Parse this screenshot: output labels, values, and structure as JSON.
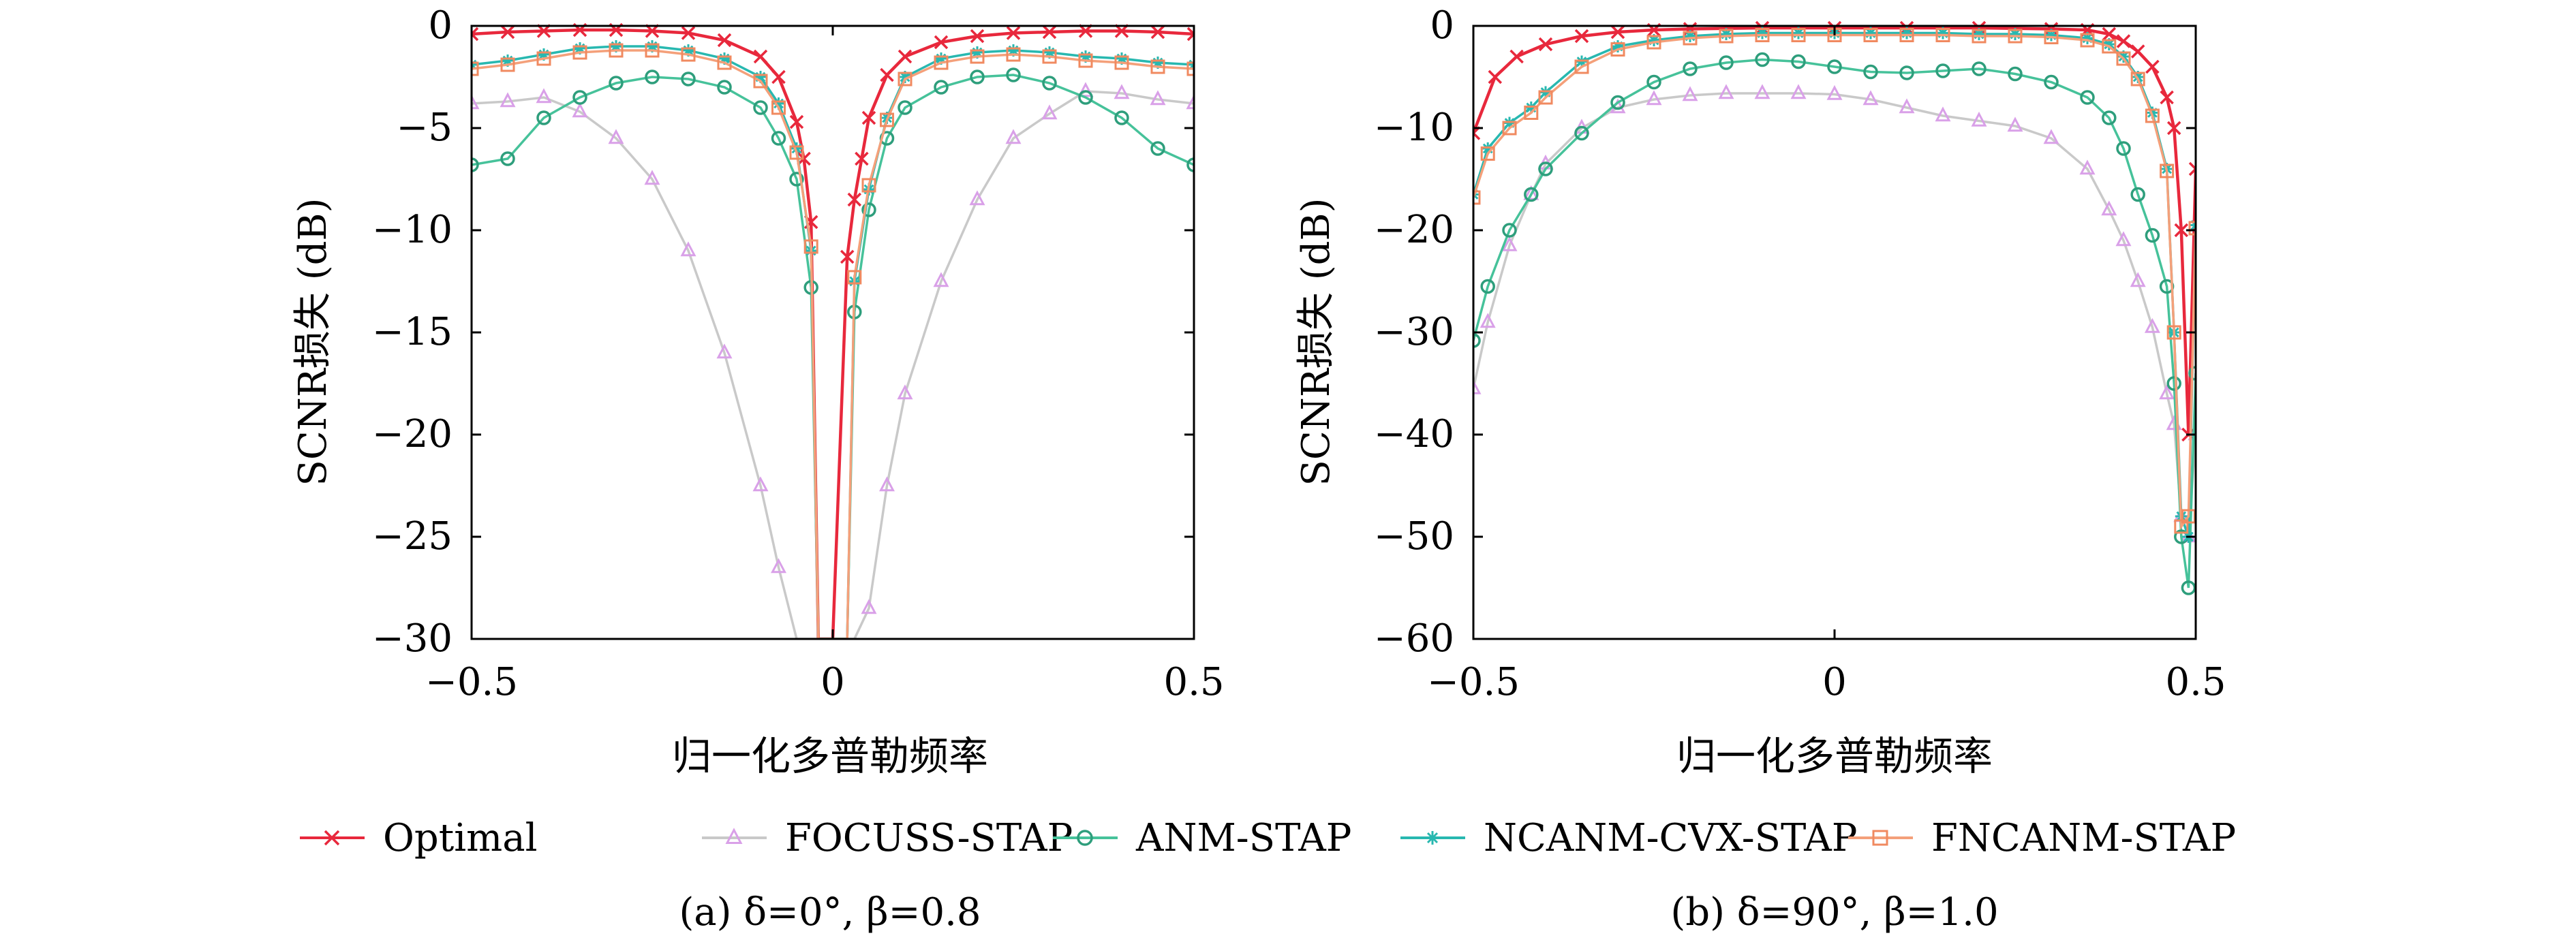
{
  "chart_data": [
    {
      "type": "line",
      "caption": "(a) δ=0°, β=0.8",
      "xlabel": "归一化多普勒频率",
      "ylabel": "SCNR损失 (dB)",
      "xlim": [
        -0.5,
        0.5
      ],
      "ylim": [
        -30,
        0
      ],
      "xticks": [
        -0.5,
        0,
        0.5
      ],
      "xtick_labels": [
        "−0.5",
        "0",
        "0.5"
      ],
      "yticks": [
        0,
        -5,
        -10,
        -15,
        -20,
        -25,
        -30
      ],
      "ytick_labels": [
        "0",
        "−5",
        "−10",
        "−15",
        "−20",
        "−25",
        "−30"
      ],
      "grid": false,
      "series": [
        {
          "name": "Optimal",
          "x": [
            -0.5,
            -0.45,
            -0.4,
            -0.35,
            -0.3,
            -0.25,
            -0.2,
            -0.15,
            -0.1,
            -0.075,
            -0.05,
            -0.04,
            -0.03,
            -0.02,
            0,
            0.02,
            0.03,
            0.04,
            0.05,
            0.075,
            0.1,
            0.15,
            0.2,
            0.25,
            0.3,
            0.35,
            0.4,
            0.45,
            0.5
          ],
          "y": [
            -0.4,
            -0.3,
            -0.25,
            -0.2,
            -0.2,
            -0.25,
            -0.35,
            -0.7,
            -1.5,
            -2.5,
            -4.7,
            -6.5,
            -9.6,
            -30,
            -30,
            -11.3,
            -8.5,
            -6.5,
            -4.5,
            -2.4,
            -1.5,
            -0.8,
            -0.5,
            -0.35,
            -0.3,
            -0.25,
            -0.25,
            -0.3,
            -0.4
          ]
        },
        {
          "name": "FOCUSS-STAP",
          "x": [
            -0.5,
            -0.45,
            -0.4,
            -0.35,
            -0.3,
            -0.25,
            -0.2,
            -0.15,
            -0.1,
            -0.075,
            -0.05,
            -0.03,
            -0.02,
            0.02,
            0.03,
            0.05,
            0.075,
            0.1,
            0.15,
            0.2,
            0.25,
            0.3,
            0.35,
            0.4,
            0.45,
            0.5
          ],
          "y": [
            -3.8,
            -3.7,
            -3.5,
            -4.2,
            -5.5,
            -7.5,
            -11,
            -16,
            -22.5,
            -26.5,
            -30,
            -30,
            -30,
            -30,
            -30,
            -28.5,
            -22.5,
            -18,
            -12.5,
            -8.5,
            -5.5,
            -4.3,
            -3.2,
            -3.3,
            -3.6,
            -3.8
          ]
        },
        {
          "name": "ANM-STAP",
          "x": [
            -0.5,
            -0.45,
            -0.4,
            -0.35,
            -0.3,
            -0.25,
            -0.2,
            -0.15,
            -0.1,
            -0.075,
            -0.05,
            -0.03,
            -0.02,
            0.02,
            0.03,
            0.05,
            0.075,
            0.1,
            0.15,
            0.2,
            0.25,
            0.3,
            0.35,
            0.4,
            0.45,
            0.5
          ],
          "y": [
            -6.8,
            -6.5,
            -4.5,
            -3.5,
            -2.8,
            -2.5,
            -2.6,
            -3.0,
            -4.0,
            -5.5,
            -7.5,
            -12.8,
            -30,
            -30,
            -14.0,
            -9.0,
            -5.5,
            -4.0,
            -3.0,
            -2.5,
            -2.4,
            -2.8,
            -3.5,
            -4.5,
            -6.0,
            -6.8
          ]
        },
        {
          "name": "NCANM-CVX-STAP",
          "x": [
            -0.5,
            -0.45,
            -0.4,
            -0.35,
            -0.3,
            -0.25,
            -0.2,
            -0.15,
            -0.1,
            -0.075,
            -0.05,
            -0.03,
            -0.02,
            0.02,
            0.03,
            0.05,
            0.075,
            0.1,
            0.15,
            0.2,
            0.25,
            0.3,
            0.35,
            0.4,
            0.45,
            0.5
          ],
          "y": [
            -1.9,
            -1.7,
            -1.4,
            -1.1,
            -1.0,
            -1.0,
            -1.2,
            -1.6,
            -2.5,
            -3.8,
            -6.0,
            -11.0,
            -30,
            -30,
            -12.5,
            -8.0,
            -4.5,
            -2.5,
            -1.6,
            -1.3,
            -1.2,
            -1.3,
            -1.5,
            -1.6,
            -1.8,
            -1.9
          ]
        },
        {
          "name": "FNCANM-STAP",
          "x": [
            -0.5,
            -0.45,
            -0.4,
            -0.35,
            -0.3,
            -0.25,
            -0.2,
            -0.15,
            -0.1,
            -0.075,
            -0.05,
            -0.03,
            -0.02,
            0.02,
            0.03,
            0.05,
            0.075,
            0.1,
            0.15,
            0.2,
            0.25,
            0.3,
            0.35,
            0.4,
            0.45,
            0.5
          ],
          "y": [
            -2.1,
            -1.9,
            -1.6,
            -1.3,
            -1.2,
            -1.2,
            -1.4,
            -1.8,
            -2.7,
            -4.0,
            -6.2,
            -10.8,
            -30,
            -30,
            -12.3,
            -7.8,
            -4.6,
            -2.6,
            -1.8,
            -1.5,
            -1.4,
            -1.5,
            -1.7,
            -1.8,
            -2.0,
            -2.1
          ]
        }
      ]
    },
    {
      "type": "line",
      "caption": "(b) δ=90°, β=1.0",
      "xlabel": "归一化多普勒频率",
      "ylabel": "SCNR损失 (dB)",
      "xlim": [
        -0.5,
        0.5
      ],
      "ylim": [
        -60,
        0
      ],
      "xticks": [
        -0.5,
        0,
        0.5
      ],
      "xtick_labels": [
        "−0.5",
        "0",
        "0.5"
      ],
      "yticks": [
        0,
        -10,
        -20,
        -30,
        -40,
        -50,
        -60
      ],
      "ytick_labels": [
        "0",
        "−10",
        "−20",
        "−30",
        "−40",
        "−50",
        "−60"
      ],
      "grid": false,
      "series": [
        {
          "name": "Optimal",
          "x": [
            -0.5,
            -0.47,
            -0.44,
            -0.4,
            -0.35,
            -0.3,
            -0.25,
            -0.2,
            -0.1,
            0,
            0.1,
            0.2,
            0.3,
            0.35,
            0.38,
            0.4,
            0.42,
            0.44,
            0.46,
            0.47,
            0.48,
            0.49,
            0.5
          ],
          "y": [
            -10.5,
            -5.0,
            -3.0,
            -1.8,
            -1.0,
            -0.6,
            -0.4,
            -0.3,
            -0.2,
            -0.2,
            -0.2,
            -0.2,
            -0.3,
            -0.4,
            -0.8,
            -1.5,
            -2.5,
            -4.0,
            -7.0,
            -10.0,
            -20.0,
            -40.0,
            -14.0
          ]
        },
        {
          "name": "FOCUSS-STAP",
          "x": [
            -0.5,
            -0.48,
            -0.45,
            -0.42,
            -0.4,
            -0.35,
            -0.3,
            -0.25,
            -0.2,
            -0.15,
            -0.1,
            -0.05,
            0,
            0.05,
            0.1,
            0.15,
            0.2,
            0.25,
            0.3,
            0.35,
            0.38,
            0.4,
            0.42,
            0.44,
            0.46,
            0.47,
            0.48,
            0.49,
            0.5
          ],
          "y": [
            -35.5,
            -29.0,
            -21.5,
            -16.5,
            -13.5,
            -10.0,
            -8.0,
            -7.2,
            -6.8,
            -6.6,
            -6.6,
            -6.6,
            -6.7,
            -7.2,
            -8.0,
            -8.8,
            -9.3,
            -9.8,
            -11.0,
            -14.0,
            -18.0,
            -21.0,
            -25.0,
            -29.5,
            -36.0,
            -39.0,
            -48.0,
            -50.0,
            -40.0
          ]
        },
        {
          "name": "ANM-STAP",
          "x": [
            -0.5,
            -0.48,
            -0.45,
            -0.42,
            -0.4,
            -0.35,
            -0.3,
            -0.25,
            -0.2,
            -0.15,
            -0.1,
            -0.05,
            0,
            0.05,
            0.1,
            0.15,
            0.2,
            0.25,
            0.3,
            0.35,
            0.38,
            0.4,
            0.42,
            0.44,
            0.46,
            0.47,
            0.48,
            0.49,
            0.5
          ],
          "y": [
            -30.8,
            -25.5,
            -20.0,
            -16.5,
            -14.0,
            -10.5,
            -7.5,
            -5.5,
            -4.2,
            -3.6,
            -3.3,
            -3.5,
            -4.0,
            -4.5,
            -4.6,
            -4.4,
            -4.2,
            -4.7,
            -5.5,
            -7.0,
            -9.0,
            -12.0,
            -16.5,
            -20.5,
            -25.5,
            -35.0,
            -50.0,
            -55.0,
            -34.0
          ]
        },
        {
          "name": "NCANM-CVX-STAP",
          "x": [
            -0.5,
            -0.48,
            -0.45,
            -0.42,
            -0.4,
            -0.35,
            -0.3,
            -0.25,
            -0.2,
            -0.15,
            -0.1,
            -0.05,
            0,
            0.05,
            0.1,
            0.15,
            0.2,
            0.25,
            0.3,
            0.35,
            0.38,
            0.4,
            0.42,
            0.44,
            0.46,
            0.47,
            0.48,
            0.49,
            0.5
          ],
          "y": [
            -16.5,
            -12.0,
            -9.5,
            -8.0,
            -6.5,
            -3.5,
            -2.0,
            -1.4,
            -1.0,
            -0.8,
            -0.7,
            -0.7,
            -0.7,
            -0.7,
            -0.7,
            -0.7,
            -0.8,
            -0.8,
            -0.9,
            -1.2,
            -1.8,
            -3.0,
            -5.0,
            -8.5,
            -14.0,
            -30.0,
            -48.0,
            -50.0,
            -19.5
          ]
        },
        {
          "name": "FNCANM-STAP",
          "x": [
            -0.5,
            -0.48,
            -0.45,
            -0.42,
            -0.4,
            -0.35,
            -0.3,
            -0.25,
            -0.2,
            -0.15,
            -0.1,
            -0.05,
            0,
            0.05,
            0.1,
            0.15,
            0.2,
            0.25,
            0.3,
            0.35,
            0.38,
            0.4,
            0.42,
            0.44,
            0.46,
            0.47,
            0.48,
            0.49,
            0.5
          ],
          "y": [
            -16.8,
            -12.5,
            -10.0,
            -8.5,
            -7.0,
            -4.0,
            -2.3,
            -1.6,
            -1.2,
            -1.0,
            -0.9,
            -0.9,
            -0.9,
            -0.9,
            -0.9,
            -0.9,
            -1.0,
            -1.0,
            -1.1,
            -1.4,
            -2.0,
            -3.2,
            -5.2,
            -8.8,
            -14.2,
            -30.0,
            -49.0,
            -48.0,
            -19.8
          ]
        }
      ]
    }
  ],
  "legend": {
    "placement": "bottom",
    "items": [
      {
        "name": "Optimal",
        "color": "#e8283c",
        "marker": "x"
      },
      {
        "name": "FOCUSS-STAP",
        "color": "#c9c9c9",
        "marker_color": "#d9a0e8",
        "marker": "triangle"
      },
      {
        "name": "ANM-STAP",
        "color": "#46c29a",
        "marker_color": "#2e9e7c",
        "marker": "circle"
      },
      {
        "name": "NCANM-CVX-STAP",
        "color": "#28b8b0",
        "marker": "star"
      },
      {
        "name": "FNCANM-STAP",
        "color": "#f4a07a",
        "marker_color": "#f08a60",
        "marker": "square"
      }
    ]
  }
}
